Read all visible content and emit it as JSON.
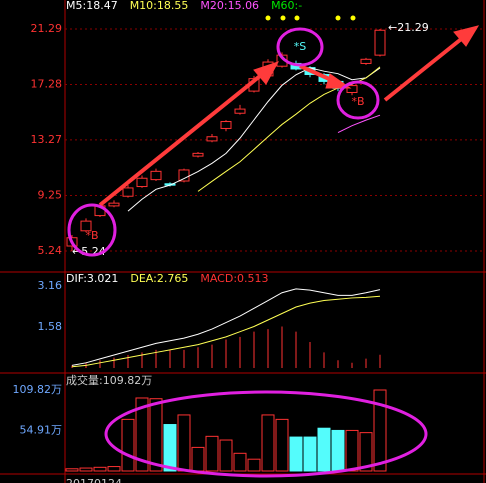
{
  "chart_data": [
    {
      "type": "candlestick",
      "open": [
        5.6,
        6.7,
        7.8,
        8.5,
        9.2,
        9.9,
        10.4,
        10.1,
        10.3,
        12.1,
        13.2,
        14.1,
        15.2,
        16.8,
        17.9,
        18.6,
        18.8,
        18.5,
        18.0,
        17.5,
        16.7,
        18.8,
        19.4
      ],
      "high": [
        6.4,
        7.6,
        8.7,
        8.9,
        10.0,
        10.7,
        11.2,
        10.2,
        11.2,
        12.4,
        13.7,
        14.7,
        15.8,
        17.9,
        19.1,
        19.6,
        19.0,
        18.6,
        18.1,
        17.6,
        17.3,
        19.2,
        21.29
      ],
      "low": [
        5.24,
        6.6,
        7.7,
        8.4,
        9.1,
        9.8,
        10.3,
        9.9,
        10.2,
        12.0,
        13.1,
        13.9,
        15.1,
        16.7,
        17.8,
        18.5,
        18.3,
        17.8,
        17.3,
        16.8,
        16.5,
        18.7,
        19.3
      ],
      "close": [
        6.2,
        7.4,
        8.5,
        8.7,
        9.8,
        10.5,
        11.0,
        10.0,
        11.1,
        12.3,
        13.5,
        14.6,
        15.5,
        17.7,
        18.9,
        19.4,
        18.4,
        18.0,
        17.5,
        17.0,
        17.2,
        19.1,
        21.2
      ],
      "up_color": "#ff3232",
      "down_color": "#54fcfc",
      "series": [
        {
          "name": "M5:18.47",
          "color": "#ffffff",
          "values": [
            null,
            null,
            null,
            null,
            8.12,
            8.98,
            9.7,
            10.0,
            10.48,
            10.98,
            11.58,
            12.3,
            13.4,
            14.72,
            16.04,
            17.22,
            17.98,
            18.48,
            18.24,
            18.06,
            17.62,
            17.76,
            18.47
          ]
        },
        {
          "name": "M10:18.55",
          "color": "#ffff54",
          "values": [
            null,
            null,
            null,
            null,
            null,
            null,
            null,
            null,
            null,
            9.55,
            10.28,
            10.99,
            11.69,
            12.59,
            13.5,
            14.39,
            15.13,
            15.92,
            16.56,
            17.03,
            17.3,
            17.75,
            18.55
          ]
        },
        {
          "name": "M20:15.06",
          "color": "#ff54ff",
          "values": [
            null,
            null,
            null,
            null,
            null,
            null,
            null,
            null,
            null,
            null,
            null,
            null,
            null,
            null,
            null,
            null,
            null,
            null,
            null,
            13.8,
            14.3,
            14.7,
            15.06
          ]
        },
        {
          "name": "M60:-",
          "color": "#00e600",
          "values": [
            null,
            null,
            null,
            null,
            null,
            null,
            null,
            null,
            null,
            null,
            null,
            null,
            null,
            null,
            null,
            null,
            null,
            null,
            null,
            null,
            null,
            null,
            null
          ]
        }
      ],
      "ylim": [
        5.24,
        21.29
      ],
      "yticks": [
        5.24,
        9.25,
        13.27,
        17.28,
        21.29
      ],
      "grid": true,
      "annotations": {
        "buy1": "*B",
        "sell": "*S",
        "buy2": "*B",
        "high": "←21.29",
        "low": "←5.24"
      }
    },
    {
      "type": "macd",
      "series": [
        {
          "name": "DIF:3.021",
          "color": "#ffffff",
          "values": [
            0.1,
            0.2,
            0.35,
            0.5,
            0.65,
            0.8,
            0.95,
            1.05,
            1.15,
            1.3,
            1.5,
            1.75,
            2.0,
            2.3,
            2.6,
            2.9,
            3.05,
            3.0,
            2.9,
            2.8,
            2.8,
            2.9,
            3.021
          ]
        },
        {
          "name": "DEA:2.765",
          "color": "#ffff54",
          "values": [
            0.05,
            0.1,
            0.2,
            0.3,
            0.4,
            0.5,
            0.6,
            0.7,
            0.8,
            0.9,
            1.05,
            1.2,
            1.4,
            1.6,
            1.85,
            2.1,
            2.35,
            2.5,
            2.6,
            2.65,
            2.7,
            2.72,
            2.765
          ]
        },
        {
          "name": "MACD:0.513",
          "color": "#ff3232",
          "values": [
            0.1,
            0.2,
            0.3,
            0.4,
            0.5,
            0.6,
            0.7,
            0.7,
            0.7,
            0.8,
            0.9,
            1.1,
            1.2,
            1.4,
            1.5,
            1.6,
            1.4,
            1.0,
            0.6,
            0.3,
            0.2,
            0.36,
            0.513
          ]
        }
      ],
      "ylim": [
        0,
        3.16
      ],
      "yticks": [
        1.58,
        3.16
      ]
    },
    {
      "type": "bar",
      "title": "成交量:109.82万",
      "values": [
        3,
        4,
        5,
        6,
        70,
        99,
        98,
        63,
        76,
        32,
        47,
        42,
        24,
        16,
        76,
        70,
        46,
        46,
        58,
        55,
        55,
        52,
        109.82
      ],
      "ylim": [
        0,
        109.82
      ],
      "yticks": [
        {
          "value": 54.91,
          "label": "54.91万"
        },
        {
          "value": 109.82,
          "label": "109.82万"
        }
      ],
      "date": "20170124"
    }
  ]
}
